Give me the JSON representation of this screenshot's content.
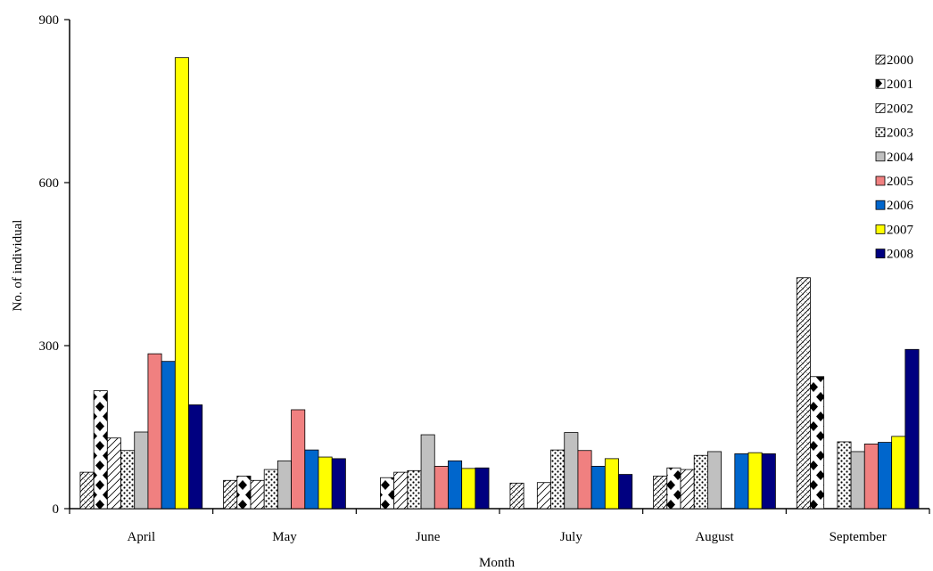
{
  "chart_data": {
    "type": "bar",
    "title": "",
    "xlabel": "Month",
    "ylabel": "No. of individual",
    "ylim": [
      0,
      900
    ],
    "yticks": [
      0,
      300,
      600,
      900
    ],
    "grid": false,
    "legend_position": "top-right",
    "categories": [
      "April",
      "May",
      "June",
      "July",
      "August",
      "September"
    ],
    "series": [
      {
        "name": "2000",
        "color": "#ffffff",
        "pattern": "diagonal-weave",
        "values": [
          67,
          52,
          0,
          47,
          60,
          425
        ]
      },
      {
        "name": "2001",
        "color": "#000000",
        "pattern": "black-diamonds",
        "values": [
          217,
          60,
          57,
          0,
          75,
          243
        ]
      },
      {
        "name": "2002",
        "color": "#ffffff",
        "pattern": "diagonal-lines",
        "values": [
          130,
          52,
          67,
          48,
          72,
          0
        ]
      },
      {
        "name": "2003",
        "color": "#ffffff",
        "pattern": "dots",
        "values": [
          107,
          72,
          70,
          108,
          98,
          123
        ]
      },
      {
        "name": "2004",
        "color": "#c0c0c0",
        "pattern": "solid",
        "values": [
          141,
          88,
          136,
          140,
          105,
          105
        ]
      },
      {
        "name": "2005",
        "color": "#f08080",
        "pattern": "solid",
        "values": [
          285,
          182,
          78,
          107,
          0,
          119
        ]
      },
      {
        "name": "2006",
        "color": "#0066cc",
        "pattern": "solid",
        "values": [
          271,
          108,
          88,
          78,
          101,
          122
        ]
      },
      {
        "name": "2007",
        "color": "#ffff00",
        "pattern": "solid",
        "values": [
          830,
          95,
          74,
          92,
          103,
          133
        ]
      },
      {
        "name": "2008",
        "color": "#000080",
        "pattern": "solid",
        "values": [
          191,
          92,
          75,
          63,
          101,
          293
        ]
      }
    ]
  }
}
